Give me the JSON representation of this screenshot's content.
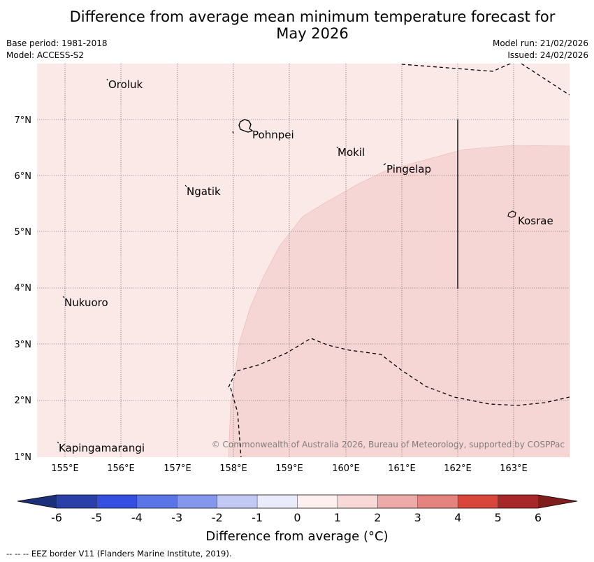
{
  "title": {
    "line1": "Difference from average mean minimum temperature forecast for",
    "line2": "May 2026"
  },
  "meta": {
    "base_period": "Base period: 1981-2018",
    "model": "Model: ACCESS-S2",
    "model_run": "Model run: 21/02/2026",
    "issued": "Issued: 24/02/2026"
  },
  "map": {
    "lon_labels": [
      "155°E",
      "156°E",
      "157°E",
      "158°E",
      "159°E",
      "160°E",
      "161°E",
      "162°E",
      "163°E"
    ],
    "lat_labels": [
      "7°N",
      "6°N",
      "5°N",
      "4°N",
      "3°N",
      "2°N",
      "1°N"
    ],
    "base_fill_color": "#fbe9e8",
    "anomaly_fill_color": "#f6d6d5",
    "places": [
      {
        "name": "Oroluk"
      },
      {
        "name": "Pohnpei"
      },
      {
        "name": "Mokil"
      },
      {
        "name": "Pingelap"
      },
      {
        "name": "Ngatik"
      },
      {
        "name": "Kosrae"
      },
      {
        "name": "Nukuoro"
      },
      {
        "name": "Kapingamarangi"
      }
    ],
    "copyright": "© Commonwealth of Australia 2026, Bureau of Meteorology, supported by COSPPac"
  },
  "colorbar": {
    "title": "Difference from average (°C)",
    "ticks": [
      "-6",
      "-5",
      "-4",
      "-3",
      "-2",
      "-1",
      "0",
      "1",
      "2",
      "3",
      "4",
      "5",
      "6"
    ],
    "low_extend_color": "#1c2f7a",
    "high_extend_color": "#7f1d1d",
    "colors": [
      "#2a3fa8",
      "#3550e0",
      "#5a75e6",
      "#8597ed",
      "#c2c9f4",
      "#ebecfb",
      "#fdf0ef",
      "#f8d9d8",
      "#eeaaa8",
      "#e5847f",
      "#d9473c",
      "#a8282a"
    ]
  },
  "footer": {
    "legend": "--  --  -- EEZ border V11 (Flanders Marine Institute, 2019)."
  }
}
